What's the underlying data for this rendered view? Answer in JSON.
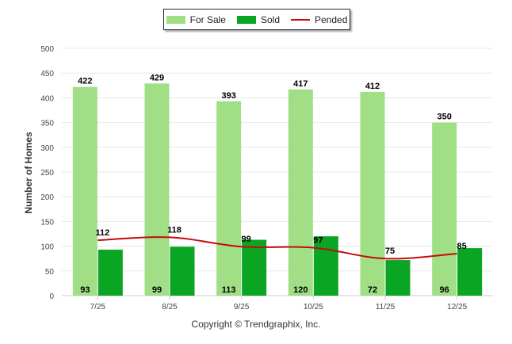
{
  "legend": {
    "for_sale": "For Sale",
    "sold": "Sold",
    "pended": "Pended"
  },
  "footer": {
    "copyright": "Copyright © Trendgraphix, Inc."
  },
  "colors": {
    "for_sale": "#a0df86",
    "sold": "#0aa522",
    "pended": "#c40b0b",
    "grid": "#e8e8e8",
    "axis": "#cccccc"
  },
  "chart_data": {
    "type": "bar",
    "title": "",
    "xlabel": "",
    "ylabel": "Number of Homes",
    "ylim": [
      0,
      500
    ],
    "yticks": [
      0,
      50,
      100,
      150,
      200,
      250,
      300,
      350,
      400,
      450,
      500
    ],
    "categories": [
      "7/25",
      "8/25",
      "9/25",
      "10/25",
      "11/25",
      "12/25"
    ],
    "series": [
      {
        "name": "For Sale",
        "kind": "bar",
        "values": [
          422,
          429,
          393,
          417,
          412,
          350
        ]
      },
      {
        "name": "Sold",
        "kind": "bar",
        "values": [
          93,
          99,
          113,
          120,
          72,
          96
        ]
      },
      {
        "name": "Pended",
        "kind": "line",
        "values": [
          112,
          118,
          99,
          97,
          75,
          85
        ]
      }
    ],
    "legend_position": "top-center"
  }
}
